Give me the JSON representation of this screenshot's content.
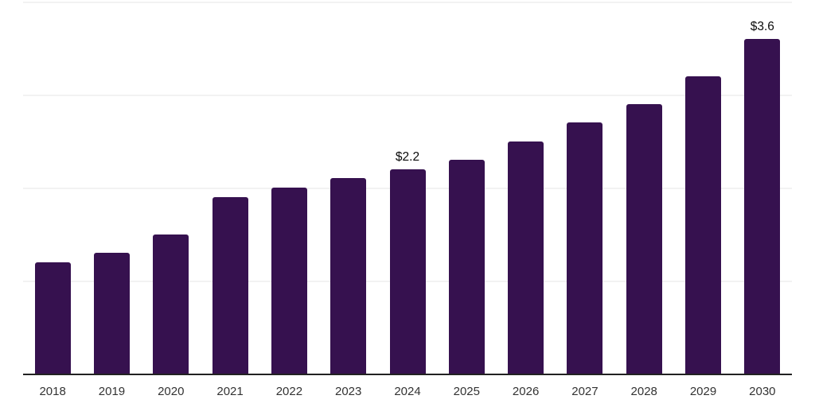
{
  "chart_data": {
    "type": "bar",
    "categories": [
      "2018",
      "2019",
      "2020",
      "2021",
      "2022",
      "2023",
      "2024",
      "2025",
      "2026",
      "2027",
      "2028",
      "2029",
      "2030"
    ],
    "values": [
      1.2,
      1.3,
      1.5,
      1.9,
      2.0,
      2.1,
      2.2,
      2.3,
      2.5,
      2.7,
      2.9,
      3.2,
      3.6
    ],
    "point_labels": [
      "",
      "",
      "",
      "",
      "",
      "",
      "$2.2",
      "",
      "",
      "",
      "",
      "",
      "$3.6"
    ],
    "ylim": [
      0,
      4
    ],
    "gridline_values": [
      1,
      2,
      3,
      4
    ],
    "grid": true,
    "legend": false,
    "colors": {
      "bar": "#36114F",
      "gridline": "#f2f2f2",
      "axis": "#222222",
      "tick_label": "#333333",
      "value_label": "#0a0a0a",
      "background": "#ffffff"
    }
  }
}
